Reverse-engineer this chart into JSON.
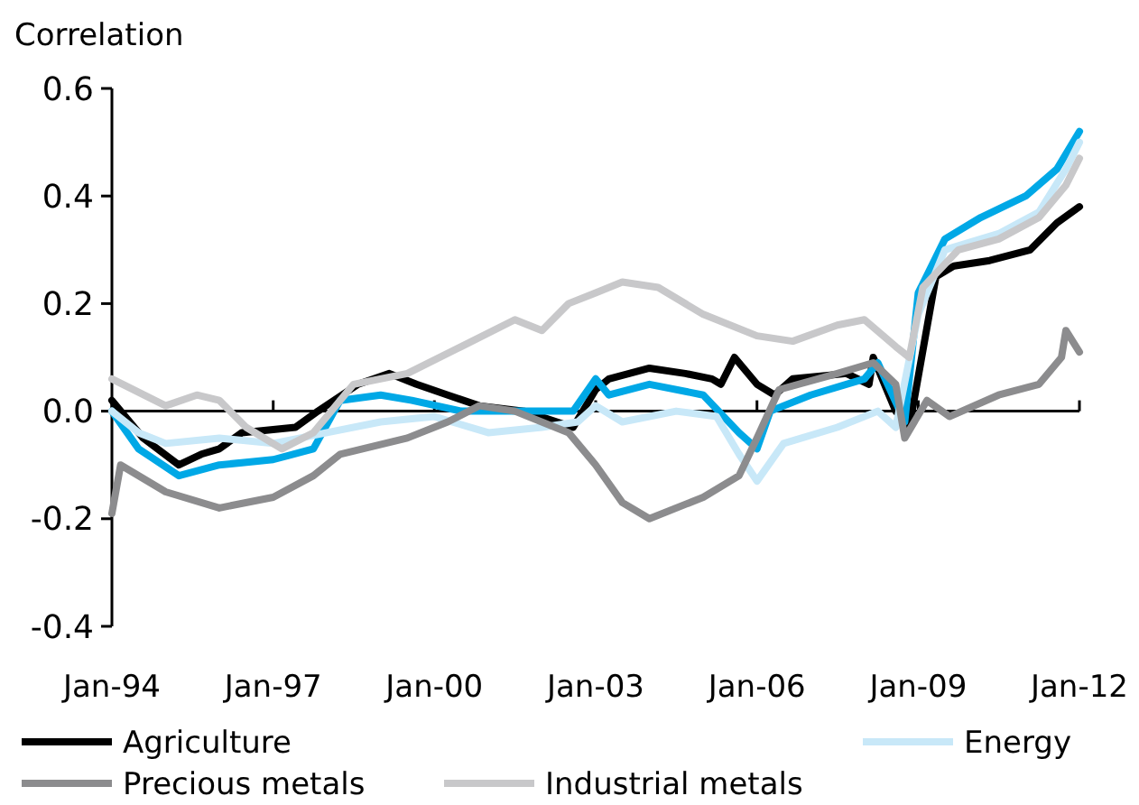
{
  "chart_data": {
    "type": "line",
    "ylabel": "Correlation",
    "xlim": [
      "1994-01",
      "2012-01"
    ],
    "xticks": [
      {
        "value": "1994-01",
        "label": "Jan-94"
      },
      {
        "value": "1997-01",
        "label": "Jan-97"
      },
      {
        "value": "2000-01",
        "label": "Jan-00"
      },
      {
        "value": "2003-01",
        "label": "Jan-03"
      },
      {
        "value": "2006-01",
        "label": "Jan-06"
      },
      {
        "value": "2009-01",
        "label": "Jan-09"
      },
      {
        "value": "2012-01",
        "label": "Jan-12"
      }
    ],
    "ylim": [
      -0.4,
      0.6
    ],
    "yticks": [
      {
        "value": -0.4,
        "label": "-0.4"
      },
      {
        "value": -0.2,
        "label": "-0.2"
      },
      {
        "value": 0,
        "label": "0.0"
      },
      {
        "value": 0.2,
        "label": "0.2"
      },
      {
        "value": 0.4,
        "label": "0.4"
      },
      {
        "value": 0.6,
        "label": "0.6"
      }
    ],
    "legend": "bottom",
    "marker": "none",
    "line_style": "solid",
    "series": [
      {
        "name": "Agriculture",
        "color": "#000000",
        "x": [
          "1994-01",
          "1994-08",
          "1995-04",
          "1995-09",
          "1996-01",
          "1996-06",
          "1997-06",
          "1997-11",
          "1998-08",
          "1999-03",
          "1999-09",
          "2000-04",
          "2000-11",
          "2001-09",
          "2002-08",
          "2003-01",
          "2003-04",
          "2004-01",
          "2004-09",
          "2005-03",
          "2005-05",
          "2005-08",
          "2006-01",
          "2006-05",
          "2006-09",
          "2007-09",
          "2008-02",
          "2008-03",
          "2008-08",
          "2008-11",
          "2009-01",
          "2009-05",
          "2009-09",
          "2010-05",
          "2011-02",
          "2011-08",
          "2012-01"
        ],
        "values": [
          0.02,
          -0.05,
          -0.1,
          -0.08,
          -0.07,
          -0.04,
          -0.03,
          0.0,
          0.05,
          0.07,
          0.05,
          0.03,
          0.01,
          0.0,
          -0.03,
          0.04,
          0.06,
          0.08,
          0.07,
          0.06,
          0.05,
          0.1,
          0.05,
          0.03,
          0.06,
          0.07,
          0.05,
          0.1,
          0.0,
          -0.03,
          null,
          0.25,
          0.27,
          0.28,
          0.3,
          0.35,
          0.38
        ]
      },
      {
        "color": "#00a8e6",
        "x": [
          "1994-01",
          "1994-07",
          "1995-04",
          "1996-01",
          "1997-01",
          "1997-10",
          "1998-04",
          "1999-01",
          "1999-08",
          "2000-07",
          "2001-07",
          "2002-08",
          "2003-01",
          "2003-04",
          "2004-01",
          "2005-01",
          "2005-09",
          "2006-01",
          "2006-04",
          "2007-01",
          "2008-01",
          "2008-04",
          "2008-10",
          "2009-01",
          "2009-07",
          "2010-03",
          "2011-01",
          "2011-08",
          "2012-01"
        ],
        "values": [
          0.0,
          -0.07,
          -0.12,
          -0.1,
          -0.09,
          -0.07,
          0.02,
          0.03,
          0.02,
          0.0,
          0.0,
          0.0,
          0.06,
          0.03,
          0.05,
          0.03,
          -0.04,
          -0.07,
          0.0,
          0.03,
          0.06,
          0.09,
          -0.02,
          0.22,
          0.32,
          0.36,
          0.4,
          0.45,
          0.52
        ]
      },
      {
        "name": "Energy",
        "color": "#c8e8f8",
        "x": [
          "1994-01",
          "1994-07",
          "1995-01",
          "1996-01",
          "1997-01",
          "1998-01",
          "1999-01",
          "2000-01",
          "2001-01",
          "2002-01",
          "2002-09",
          "2003-01",
          "2003-07",
          "2004-07",
          "2005-04",
          "2005-09",
          "2006-01",
          "2006-07",
          "2007-07",
          "2008-04",
          "2008-08",
          "2009-01",
          "2009-07",
          "2010-07",
          "2011-04",
          "2011-10",
          "2012-01"
        ],
        "values": [
          0.0,
          -0.04,
          -0.06,
          -0.05,
          -0.06,
          -0.04,
          -0.02,
          -0.01,
          -0.04,
          -0.03,
          -0.02,
          0.01,
          -0.02,
          0.0,
          -0.01,
          -0.08,
          -0.13,
          -0.06,
          -0.03,
          0.0,
          -0.03,
          0.18,
          0.3,
          0.33,
          0.37,
          0.45,
          0.5
        ]
      },
      {
        "name": "Precious metals",
        "color": "#8c8c8e",
        "x": [
          "1994-01",
          "1994-03",
          "1995-01",
          "1996-01",
          "1997-01",
          "1997-10",
          "1998-04",
          "1999-07",
          "2000-04",
          "2000-11",
          "2001-07",
          "2002-07",
          "2003-01",
          "2003-07",
          "2004-01",
          "2005-01",
          "2005-09",
          "2006-01",
          "2006-06",
          "2007-07",
          "2008-03",
          "2008-08",
          "2008-10",
          "2009-03",
          "2009-08",
          "2010-07",
          "2011-04",
          "2011-09",
          "2011-10",
          "2012-01"
        ],
        "values": [
          -0.19,
          -0.1,
          -0.15,
          -0.18,
          -0.16,
          -0.12,
          -0.08,
          -0.05,
          -0.02,
          0.01,
          0.0,
          -0.04,
          -0.1,
          -0.17,
          -0.2,
          -0.16,
          -0.12,
          -0.05,
          0.04,
          0.07,
          0.09,
          0.05,
          -0.05,
          0.02,
          -0.01,
          0.03,
          0.05,
          0.1,
          0.15,
          0.11
        ]
      },
      {
        "name": "Industrial metals",
        "color": "#c8c8ca",
        "x": [
          "1994-01",
          "1995-01",
          "1995-08",
          "1996-01",
          "1996-07",
          "1997-03",
          "1997-10",
          "1998-07",
          "1999-07",
          "2000-07",
          "2001-07",
          "2002-01",
          "2002-07",
          "2003-01",
          "2003-07",
          "2004-03",
          "2005-01",
          "2006-01",
          "2006-09",
          "2007-07",
          "2008-01",
          "2008-08",
          "2008-11",
          "2009-02",
          "2009-10",
          "2010-07",
          "2011-04",
          "2011-10",
          "2012-01"
        ],
        "values": [
          0.06,
          0.01,
          0.03,
          0.02,
          -0.03,
          -0.07,
          -0.04,
          0.05,
          0.07,
          0.12,
          0.17,
          0.15,
          0.2,
          0.22,
          0.24,
          0.23,
          0.18,
          0.14,
          0.13,
          0.16,
          0.17,
          0.12,
          0.1,
          0.23,
          0.3,
          0.32,
          0.36,
          0.42,
          0.47
        ]
      }
    ]
  }
}
